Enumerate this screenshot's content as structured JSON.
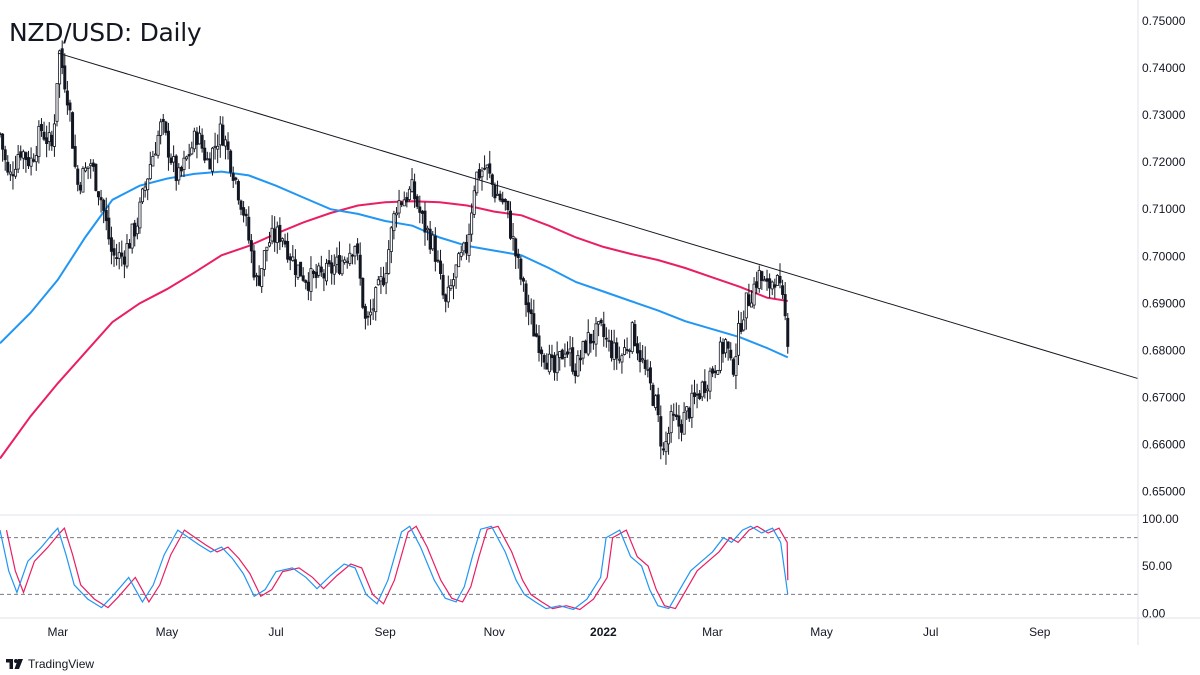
{
  "title": "NZD/USD: Daily",
  "brand": {
    "label": "TradingView",
    "icon": "tradingview-logo-icon"
  },
  "colors": {
    "candle": "#131722",
    "sma_fast": "#2196f3",
    "sma_slow": "#e91e63",
    "trendline": "#131722",
    "stoch_k": "#2196f3",
    "stoch_d": "#e91e63",
    "grid": "#e0e3eb"
  },
  "chart_data": [
    {
      "type": "candlestick",
      "title": "NZD/USD: Daily",
      "price_axis": {
        "ticks": [
          "0.75000",
          "0.74000",
          "0.73000",
          "0.72000",
          "0.71000",
          "0.70000",
          "0.69000",
          "0.68000",
          "0.67000",
          "0.66000",
          "0.65000"
        ],
        "range": [
          0.645,
          0.7515
        ]
      },
      "time_axis": {
        "ticks": [
          {
            "label": "Mar",
            "month": 2
          },
          {
            "label": "May",
            "month": 4
          },
          {
            "label": "Jul",
            "month": 6
          },
          {
            "label": "Sep",
            "month": 8
          },
          {
            "label": "Nov",
            "month": 10
          },
          {
            "label": "2022",
            "month": 12
          },
          {
            "label": "Mar",
            "month": 14
          },
          {
            "label": "May",
            "month": 16
          },
          {
            "label": "Jul",
            "month": 18
          },
          {
            "label": "Sep",
            "month": 20
          }
        ],
        "range_months": [
          0.94,
          21.8
        ]
      },
      "price_path": [
        [
          0.94,
          0.726
        ],
        [
          1.1,
          0.716
        ],
        [
          1.3,
          0.723
        ],
        [
          1.5,
          0.72
        ],
        [
          1.7,
          0.727
        ],
        [
          1.9,
          0.723
        ],
        [
          2.02,
          0.744
        ],
        [
          2.2,
          0.733
        ],
        [
          2.35,
          0.715
        ],
        [
          2.6,
          0.72
        ],
        [
          2.8,
          0.712
        ],
        [
          3.0,
          0.7
        ],
        [
          3.2,
          0.7
        ],
        [
          3.45,
          0.707
        ],
        [
          3.7,
          0.72
        ],
        [
          3.9,
          0.728
        ],
        [
          4.2,
          0.716
        ],
        [
          4.55,
          0.726
        ],
        [
          4.75,
          0.72
        ],
        [
          5.0,
          0.727
        ],
        [
          5.2,
          0.719
        ],
        [
          5.4,
          0.71
        ],
        [
          5.65,
          0.694
        ],
        [
          5.85,
          0.703
        ],
        [
          6.1,
          0.705
        ],
        [
          6.35,
          0.698
        ],
        [
          6.6,
          0.695
        ],
        [
          6.9,
          0.696
        ],
        [
          7.2,
          0.699
        ],
        [
          7.45,
          0.703
        ],
        [
          7.65,
          0.685
        ],
        [
          7.8,
          0.69
        ],
        [
          8.0,
          0.697
        ],
        [
          8.2,
          0.711
        ],
        [
          8.5,
          0.714
        ],
        [
          8.7,
          0.707
        ],
        [
          8.9,
          0.702
        ],
        [
          9.1,
          0.689
        ],
        [
          9.3,
          0.697
        ],
        [
          9.5,
          0.702
        ],
        [
          9.65,
          0.717
        ],
        [
          9.85,
          0.719
        ],
        [
          10.0,
          0.714
        ],
        [
          10.2,
          0.711
        ],
        [
          10.4,
          0.7
        ],
        [
          10.55,
          0.692
        ],
        [
          10.7,
          0.685
        ],
        [
          10.9,
          0.68
        ],
        [
          11.1,
          0.675
        ],
        [
          11.3,
          0.681
        ],
        [
          11.5,
          0.676
        ],
        [
          11.7,
          0.682
        ],
        [
          11.95,
          0.684
        ],
        [
          12.1,
          0.681
        ],
        [
          12.3,
          0.678
        ],
        [
          12.55,
          0.684
        ],
        [
          12.75,
          0.676
        ],
        [
          12.95,
          0.669
        ],
        [
          13.1,
          0.658
        ],
        [
          13.25,
          0.665
        ],
        [
          13.4,
          0.664
        ],
        [
          13.6,
          0.668
        ],
        [
          13.85,
          0.673
        ],
        [
          14.05,
          0.677
        ],
        [
          14.25,
          0.682
        ],
        [
          14.35,
          0.675
        ],
        [
          14.55,
          0.688
        ],
        [
          14.7,
          0.692
        ],
        [
          14.85,
          0.696
        ],
        [
          15.0,
          0.693
        ],
        [
          15.15,
          0.696
        ],
        [
          15.3,
          0.689
        ],
        [
          15.38,
          0.683
        ]
      ],
      "sma_fast_path": [
        [
          0.94,
          0.6815
        ],
        [
          1.5,
          0.688
        ],
        [
          2.0,
          0.695
        ],
        [
          2.5,
          0.704
        ],
        [
          3.0,
          0.712
        ],
        [
          3.5,
          0.715
        ],
        [
          4.0,
          0.7165
        ],
        [
          4.5,
          0.7175
        ],
        [
          5.0,
          0.718
        ],
        [
          5.5,
          0.7172
        ],
        [
          6.0,
          0.715
        ],
        [
          6.5,
          0.7125
        ],
        [
          7.0,
          0.71
        ],
        [
          7.5,
          0.709
        ],
        [
          8.0,
          0.7075
        ],
        [
          8.5,
          0.7065
        ],
        [
          9.0,
          0.704
        ],
        [
          9.5,
          0.7022
        ],
        [
          10.0,
          0.7012
        ],
        [
          10.5,
          0.7002
        ],
        [
          11.0,
          0.6975
        ],
        [
          11.5,
          0.6945
        ],
        [
          12.0,
          0.6925
        ],
        [
          12.5,
          0.6905
        ],
        [
          13.0,
          0.6885
        ],
        [
          13.5,
          0.6862
        ],
        [
          14.0,
          0.6845
        ],
        [
          14.5,
          0.6828
        ],
        [
          15.0,
          0.6805
        ],
        [
          15.38,
          0.6785
        ]
      ],
      "sma_slow_path": [
        [
          0.94,
          0.657
        ],
        [
          1.5,
          0.666
        ],
        [
          2.0,
          0.673
        ],
        [
          2.5,
          0.6795
        ],
        [
          3.0,
          0.686
        ],
        [
          3.5,
          0.69
        ],
        [
          4.0,
          0.693
        ],
        [
          4.5,
          0.6965
        ],
        [
          5.0,
          0.7002
        ],
        [
          5.5,
          0.7022
        ],
        [
          6.0,
          0.7048
        ],
        [
          6.5,
          0.7072
        ],
        [
          7.0,
          0.7092
        ],
        [
          7.5,
          0.7108
        ],
        [
          8.0,
          0.7115
        ],
        [
          8.5,
          0.7117
        ],
        [
          9.0,
          0.7115
        ],
        [
          9.5,
          0.7108
        ],
        [
          10.0,
          0.7095
        ],
        [
          10.5,
          0.7087
        ],
        [
          11.0,
          0.7065
        ],
        [
          11.5,
          0.704
        ],
        [
          12.0,
          0.702
        ],
        [
          12.5,
          0.7005
        ],
        [
          13.0,
          0.6992
        ],
        [
          13.5,
          0.6975
        ],
        [
          14.0,
          0.6955
        ],
        [
          14.5,
          0.6935
        ],
        [
          15.0,
          0.6912
        ],
        [
          15.38,
          0.6905
        ]
      ],
      "trendline": {
        "start": [
          2.0,
          0.7432
        ],
        "end": [
          21.8,
          0.674
        ]
      }
    },
    {
      "type": "line",
      "title": "Stochastic",
      "y_axis": {
        "ticks": [
          "100.00",
          "50.00",
          "0.00"
        ],
        "range": [
          -5,
          104
        ]
      },
      "levels": [
        80,
        20
      ],
      "k_path": [
        [
          0.94,
          88
        ],
        [
          1.1,
          45
        ],
        [
          1.25,
          22
        ],
        [
          1.45,
          55
        ],
        [
          1.7,
          70
        ],
        [
          1.9,
          84
        ],
        [
          2.0,
          90
        ],
        [
          2.15,
          62
        ],
        [
          2.3,
          30
        ],
        [
          2.55,
          15
        ],
        [
          2.8,
          6
        ],
        [
          3.0,
          18
        ],
        [
          3.3,
          38
        ],
        [
          3.55,
          12
        ],
        [
          3.75,
          30
        ],
        [
          3.95,
          62
        ],
        [
          4.2,
          88
        ],
        [
          4.4,
          80
        ],
        [
          4.6,
          72
        ],
        [
          4.8,
          65
        ],
        [
          5.0,
          70
        ],
        [
          5.2,
          58
        ],
        [
          5.4,
          42
        ],
        [
          5.6,
          18
        ],
        [
          5.8,
          25
        ],
        [
          6.0,
          44
        ],
        [
          6.3,
          48
        ],
        [
          6.55,
          38
        ],
        [
          6.75,
          26
        ],
        [
          7.0,
          40
        ],
        [
          7.25,
          52
        ],
        [
          7.45,
          48
        ],
        [
          7.65,
          20
        ],
        [
          7.85,
          10
        ],
        [
          8.05,
          35
        ],
        [
          8.3,
          86
        ],
        [
          8.45,
          92
        ],
        [
          8.65,
          70
        ],
        [
          8.9,
          35
        ],
        [
          9.1,
          16
        ],
        [
          9.3,
          12
        ],
        [
          9.45,
          28
        ],
        [
          9.6,
          60
        ],
        [
          9.75,
          89
        ],
        [
          9.95,
          92
        ],
        [
          10.2,
          65
        ],
        [
          10.4,
          35
        ],
        [
          10.55,
          20
        ],
        [
          10.75,
          12
        ],
        [
          10.95,
          5
        ],
        [
          11.2,
          8
        ],
        [
          11.45,
          4
        ],
        [
          11.7,
          15
        ],
        [
          11.95,
          38
        ],
        [
          12.05,
          80
        ],
        [
          12.3,
          88
        ],
        [
          12.5,
          60
        ],
        [
          12.7,
          50
        ],
        [
          12.85,
          25
        ],
        [
          13.0,
          8
        ],
        [
          13.2,
          5
        ],
        [
          13.4,
          25
        ],
        [
          13.6,
          45
        ],
        [
          13.8,
          55
        ],
        [
          14.0,
          65
        ],
        [
          14.2,
          80
        ],
        [
          14.35,
          75
        ],
        [
          14.55,
          88
        ],
        [
          14.7,
          92
        ],
        [
          14.9,
          85
        ],
        [
          15.1,
          90
        ],
        [
          15.25,
          75
        ],
        [
          15.38,
          20
        ]
      ],
      "d_offset": 0.12
    }
  ]
}
